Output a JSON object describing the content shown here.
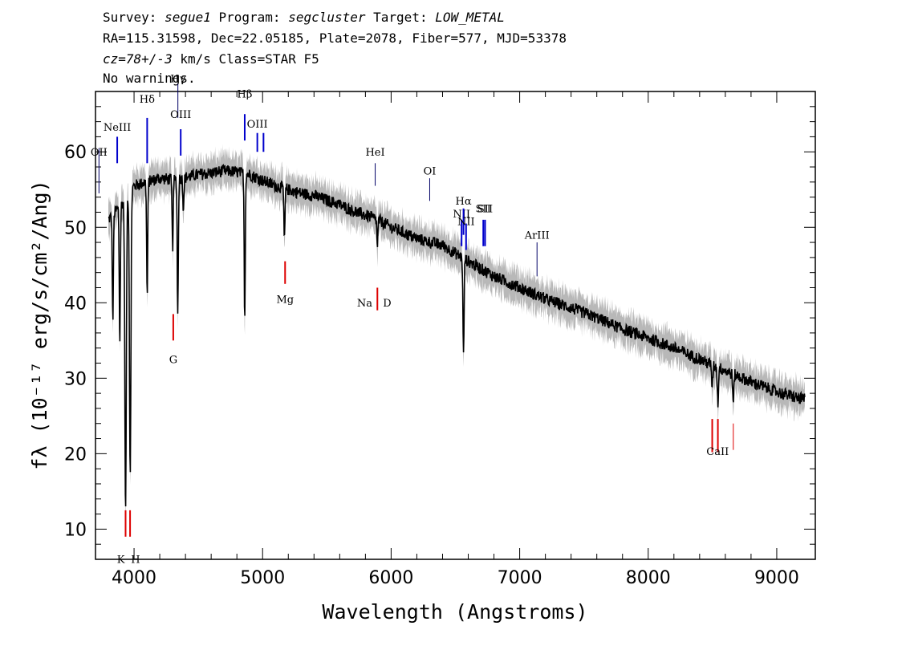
{
  "header": {
    "line1": {
      "survey_label": "Survey: ",
      "survey": "segue1",
      "program_label": " Program: ",
      "program": "segcluster",
      "target_label": " Target: ",
      "target": "LOW_METAL"
    },
    "line2": "RA=115.31598, Dec=22.05185, Plate=2078, Fiber=577, MJD=53378",
    "line3": {
      "cz_label": "cz",
      "cz_value": "=78+/-3",
      "rest": " km/s Class=STAR F5"
    },
    "line4": "No warnings."
  },
  "chart_data": {
    "type": "line",
    "xlabel": "Wavelength (Angstroms)",
    "ylabel": "fλ (10⁻¹⁷ erg/s/cm²/Ang)",
    "xlim": [
      3700,
      9300
    ],
    "ylim": [
      6,
      68
    ],
    "xticks": [
      4000,
      5000,
      6000,
      7000,
      8000,
      9000
    ],
    "yticks": [
      10,
      20,
      30,
      40,
      50,
      60
    ],
    "colors": {
      "flux": "#000000",
      "noise": "#b8b8b8",
      "emission": "#0000cc",
      "absorption": "#dd0000",
      "sky": "#000066"
    },
    "continuum": [
      [
        3800,
        51
      ],
      [
        3900,
        53
      ],
      [
        4000,
        55.5
      ],
      [
        4100,
        56
      ],
      [
        4200,
        56.5
      ],
      [
        4300,
        56.3
      ],
      [
        4400,
        56.6
      ],
      [
        4500,
        57
      ],
      [
        4600,
        57.2
      ],
      [
        4700,
        57.5
      ],
      [
        4800,
        57.3
      ],
      [
        4900,
        57
      ],
      [
        5000,
        56.2
      ],
      [
        5100,
        55.5
      ],
      [
        5200,
        55
      ],
      [
        5300,
        54.5
      ],
      [
        5400,
        54.2
      ],
      [
        5500,
        53.6
      ],
      [
        5600,
        53
      ],
      [
        5700,
        52.2
      ],
      [
        5800,
        51.6
      ],
      [
        5900,
        51
      ],
      [
        6000,
        50
      ],
      [
        6200,
        48.5
      ],
      [
        6400,
        47.6
      ],
      [
        6600,
        45.5
      ],
      [
        6800,
        43.5
      ],
      [
        7000,
        42
      ],
      [
        7200,
        40.5
      ],
      [
        7400,
        39.3
      ],
      [
        7600,
        38
      ],
      [
        7800,
        36.5
      ],
      [
        8000,
        35.3
      ],
      [
        8200,
        34
      ],
      [
        8400,
        32.5
      ],
      [
        8600,
        31
      ],
      [
        8800,
        29.5
      ],
      [
        9000,
        28.2
      ],
      [
        9200,
        27.2
      ]
    ],
    "absorption_features": [
      {
        "x": 3835,
        "depth": 14
      },
      {
        "x": 3889,
        "depth": 18
      },
      {
        "x": 3934,
        "depth": 42
      },
      {
        "x": 3970,
        "depth": 37
      },
      {
        "x": 4102,
        "depth": 15
      },
      {
        "x": 4300,
        "depth": 9
      },
      {
        "x": 4340,
        "depth": 18
      },
      {
        "x": 4384,
        "depth": 4
      },
      {
        "x": 4861,
        "depth": 19
      },
      {
        "x": 5170,
        "depth": 7
      },
      {
        "x": 5893,
        "depth": 3.5
      },
      {
        "x": 6563,
        "depth": 13
      },
      {
        "x": 8498,
        "depth": 3
      },
      {
        "x": 8542,
        "depth": 5
      },
      {
        "x": 8662,
        "depth": 4
      }
    ],
    "emission_lines": [
      {
        "label": "OII",
        "x": 3727
      },
      {
        "label": "NeIII",
        "x": 3869
      },
      {
        "label": "Hδ",
        "x": 4102
      },
      {
        "label": "Hγ",
        "x": 4341
      },
      {
        "label": "OIII",
        "x": 4363
      },
      {
        "label": "Hβ",
        "x": 4861
      },
      {
        "label": "OIII",
        "x": 4959
      },
      {
        "label": "OIII",
        "x": 5007
      },
      {
        "label": "HeI",
        "x": 5876
      },
      {
        "label": "OI",
        "x": 6300
      },
      {
        "label": "NII",
        "x": 6548
      },
      {
        "label": "Hα",
        "x": 6563
      },
      {
        "label": "NII",
        "x": 6583
      },
      {
        "label": "SII",
        "x": 6717
      },
      {
        "label": "SII",
        "x": 6731
      },
      {
        "label": "ArIII",
        "x": 7135
      }
    ],
    "absorption_lines": [
      {
        "label": "K",
        "x": 3934
      },
      {
        "label": "H",
        "x": 3969
      },
      {
        "label": "G",
        "x": 4305
      },
      {
        "label": "Mg",
        "x": 5175
      },
      {
        "label": "Na",
        "x": 5890
      },
      {
        "label": "D",
        "x": 5896
      },
      {
        "label": "CaII",
        "x": 8498
      },
      {
        "label": "CaII",
        "x": 8542
      },
      {
        "label": "CaII",
        "x": 8662
      }
    ]
  }
}
